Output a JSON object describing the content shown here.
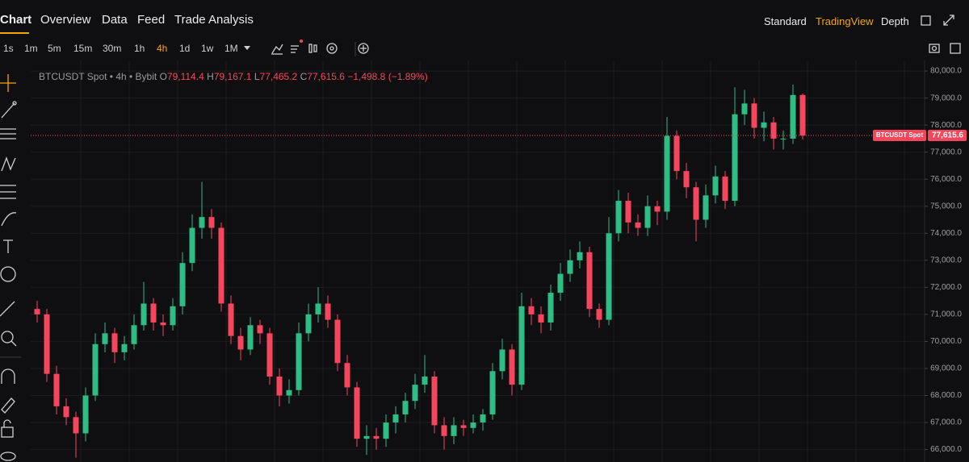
{
  "nav": {
    "tabs": [
      "Chart",
      "Overview",
      "Data",
      "Feed",
      "Trade Analysis"
    ],
    "views": [
      "Standard",
      "TradingView",
      "Depth"
    ]
  },
  "toolbar": {
    "intervals": [
      "1s",
      "1m",
      "5m",
      "15m",
      "30m",
      "1h",
      "4h",
      "1d",
      "1w",
      "1M"
    ]
  },
  "legend": {
    "symbol": "BTCUSDT Spot • 4h • Bybit",
    "open_label": "O",
    "open": "79,114.4",
    "high_label": "H",
    "high": "79,167.1",
    "low_label": "L",
    "low": "77,465.2",
    "close_label": "C",
    "close": "77,615.6",
    "change": "−1,498.8 (−1.89%)"
  },
  "chart_data": {
    "type": "candlestick",
    "up_color": "#2ebd85",
    "down_color": "#f6465d",
    "grid": true,
    "ylim": [
      65540,
      80390
    ],
    "yticks": [
      {
        "value": 66000,
        "label": "66,000.0"
      },
      {
        "value": 67000,
        "label": "67,000.0"
      },
      {
        "value": 68000,
        "label": "68,000.0"
      },
      {
        "value": 69000,
        "label": "69,000.0"
      },
      {
        "value": 70000,
        "label": "70,000.0"
      },
      {
        "value": 71000,
        "label": "71,000.0"
      },
      {
        "value": 72000,
        "label": "72,000.0"
      },
      {
        "value": 73000,
        "label": "73,000.0"
      },
      {
        "value": 74000,
        "label": "74,000.0"
      },
      {
        "value": 75000,
        "label": "75,000.0"
      },
      {
        "value": 76000,
        "label": "76,000.0"
      },
      {
        "value": 77000,
        "label": "77,000.0"
      },
      {
        "value": 78000,
        "label": "78,000.0"
      },
      {
        "value": 79000,
        "label": "79,000.0"
      },
      {
        "value": 80000,
        "label": "80,000.0"
      }
    ],
    "last_price": {
      "value": 77615.6,
      "label": "77,615.6"
    },
    "last_price_tag": "BTCUSDT Spot",
    "open": [
      71200,
      71000,
      68800,
      67600,
      67200,
      66600,
      68000,
      69900,
      70300,
      69600,
      69900,
      70600,
      71400,
      70700,
      70600,
      71300,
      72900,
      74200,
      74600,
      74200,
      71400,
      70200,
      69700,
      70600,
      70300,
      68700,
      68000,
      68200,
      70300,
      71000,
      71400,
      70800,
      69200,
      68300,
      66400,
      66500,
      66400,
      67000,
      67300,
      67800,
      68400,
      68700,
      66900,
      66500,
      66900,
      66800,
      67000,
      67300,
      68900,
      69700,
      68400,
      71300,
      71000,
      70700,
      71800,
      72500,
      73000,
      73300,
      71200,
      70800,
      74000,
      75200,
      74400,
      74200,
      75000,
      74800,
      77600,
      76300,
      75700,
      74500,
      75400,
      76100,
      75200,
      78400,
      78800,
      77900,
      78100,
      77500,
      77500,
      79114.4
    ],
    "high": [
      71500,
      71200,
      69100,
      67900,
      67400,
      68300,
      70300,
      70700,
      70500,
      70200,
      71000,
      72200,
      71600,
      71000,
      71600,
      73300,
      74700,
      75900,
      74900,
      74400,
      71700,
      70500,
      70900,
      70800,
      70500,
      69000,
      68600,
      70700,
      71400,
      72000,
      71700,
      71000,
      69500,
      68500,
      66900,
      66800,
      67300,
      67600,
      68100,
      68800,
      69500,
      68900,
      67200,
      67200,
      67100,
      67300,
      67500,
      69200,
      70100,
      69900,
      71800,
      71600,
      71300,
      72100,
      72900,
      73400,
      73700,
      73500,
      71400,
      74600,
      75600,
      75500,
      74700,
      75400,
      75200,
      78300,
      77800,
      76600,
      75900,
      75800,
      76500,
      76300,
      79400,
      79300,
      79000,
      78500,
      78300,
      77800,
      79500,
      79167.1
    ],
    "low": [
      70700,
      68500,
      67300,
      66900,
      65700,
      66300,
      67800,
      69600,
      69200,
      69300,
      69700,
      70400,
      70400,
      70200,
      70400,
      71000,
      72600,
      73800,
      73800,
      71100,
      69900,
      69300,
      69500,
      69900,
      68400,
      67600,
      67700,
      68000,
      70000,
      70700,
      70500,
      68900,
      68000,
      66100,
      65800,
      66000,
      66100,
      66600,
      67000,
      67500,
      68100,
      66600,
      66000,
      66200,
      66500,
      66600,
      66700,
      67100,
      68600,
      68000,
      68200,
      70600,
      70300,
      70400,
      71500,
      72200,
      72700,
      70900,
      70500,
      70600,
      73700,
      74000,
      73900,
      73900,
      74300,
      74500,
      76000,
      75300,
      73700,
      74200,
      75100,
      74900,
      75000,
      78000,
      77500,
      77400,
      77100,
      77100,
      77300,
      77465.2
    ],
    "close": [
      71000,
      68800,
      67600,
      67200,
      66600,
      68000,
      69900,
      70300,
      69600,
      69900,
      70600,
      71400,
      70700,
      70600,
      71300,
      72900,
      74200,
      74600,
      74200,
      71400,
      70200,
      69700,
      70600,
      70300,
      68700,
      68000,
      68200,
      70300,
      71000,
      71400,
      70800,
      69200,
      68300,
      66400,
      66500,
      66400,
      67000,
      67300,
      67800,
      68400,
      68700,
      66900,
      66500,
      66900,
      66800,
      67000,
      67300,
      68900,
      69700,
      68400,
      71300,
      71000,
      70700,
      71800,
      72500,
      73000,
      73300,
      71200,
      70800,
      74000,
      75200,
      74400,
      74200,
      75000,
      74800,
      77600,
      76300,
      75700,
      74500,
      75400,
      76100,
      75200,
      78400,
      78800,
      77900,
      78100,
      77500,
      77500,
      79114.4,
      77615.6
    ]
  }
}
